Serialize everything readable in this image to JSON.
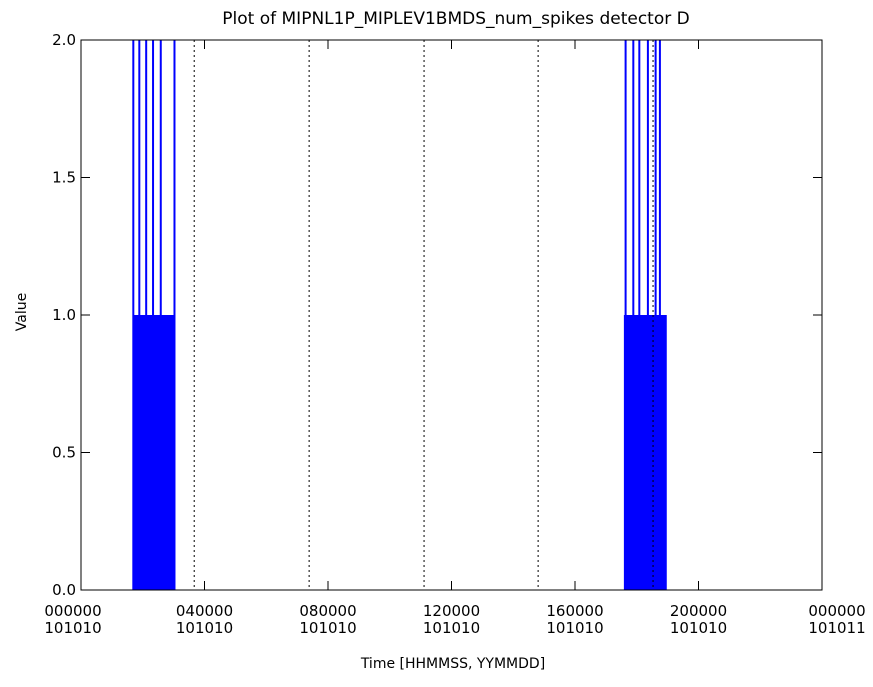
{
  "chart_data": {
    "type": "line",
    "title": "Plot of MIPNL1P_MIPLEV1BMDS_num_spikes detector D",
    "xlabel": "Time [HHMMSS, YYMMDD]",
    "ylabel": "Value",
    "xlim": [
      "000000 101010",
      "000000 101011"
    ],
    "xlim_seconds": [
      0,
      86400
    ],
    "ylim": [
      0.0,
      2.0
    ],
    "x_ticks": [
      {
        "seconds": 0,
        "time": "000000",
        "date": "101010"
      },
      {
        "seconds": 14400,
        "time": "040000",
        "date": "101010"
      },
      {
        "seconds": 28800,
        "time": "080000",
        "date": "101010"
      },
      {
        "seconds": 43200,
        "time": "120000",
        "date": "101010"
      },
      {
        "seconds": 57600,
        "time": "160000",
        "date": "101010"
      },
      {
        "seconds": 72000,
        "time": "200000",
        "date": "101010"
      },
      {
        "seconds": 86400,
        "time": "000000",
        "date": "101011"
      }
    ],
    "y_ticks": [
      "0.0",
      "0.5",
      "1.0",
      "1.5",
      "2.0"
    ],
    "y_tick_values": [
      0.0,
      0.5,
      1.0,
      1.5,
      2.0
    ],
    "vertical_dotted_lines_seconds": [
      13200,
      26600,
      40000,
      53300,
      66700
    ],
    "series": [
      {
        "color": "#0000ff",
        "segments": [
          {
            "fill_range_seconds": [
              6100,
              10900
            ],
            "fill_level": 1,
            "spikes_seconds": [
              6100,
              6800,
              7600,
              8400,
              9300,
              10900
            ]
          },
          {
            "fill_range_seconds": [
              63300,
              68300
            ],
            "fill_level": 1,
            "spikes_seconds": [
              63500,
              64400,
              65100,
              66100,
              67000,
              67500
            ]
          }
        ]
      }
    ]
  }
}
